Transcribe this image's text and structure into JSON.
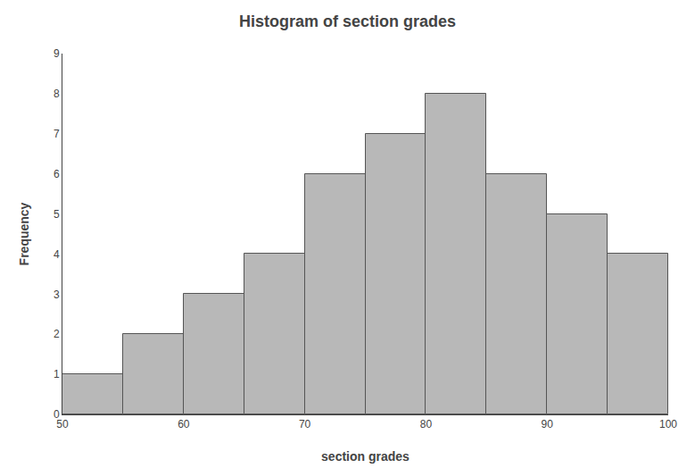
{
  "chart_data": {
    "type": "histogram",
    "title": "Histogram of section grades",
    "xlabel": "section grades",
    "ylabel": "Frequency",
    "bins": [
      50,
      55,
      60,
      65,
      70,
      75,
      80,
      85,
      90,
      95,
      100
    ],
    "values": [
      1,
      2,
      3,
      4,
      6,
      7,
      8,
      6,
      5,
      4
    ],
    "color": "#b8b8b8",
    "xlim": [
      50,
      100
    ],
    "ylim": [
      0,
      9
    ],
    "xticks": [
      50,
      60,
      70,
      80,
      90,
      100
    ],
    "yticks": [
      0,
      1,
      2,
      3,
      4,
      5,
      6,
      7,
      8,
      9
    ],
    "grid": false
  }
}
